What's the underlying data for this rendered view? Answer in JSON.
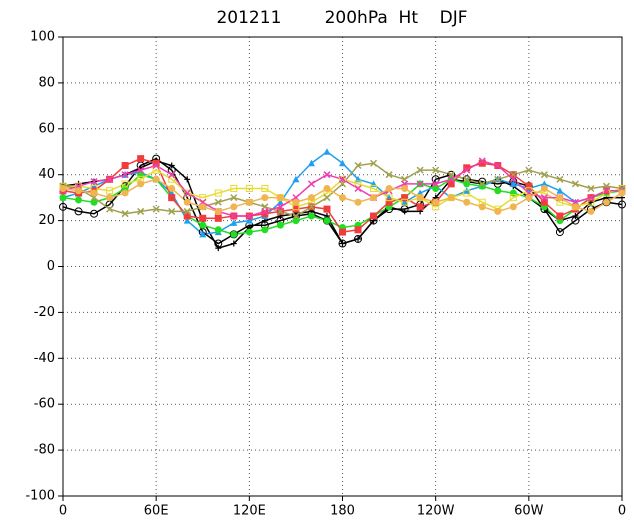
{
  "chart_data": {
    "type": "line",
    "title": "201211        200hPa  Ht    DJF",
    "x": [
      0,
      10,
      20,
      30,
      40,
      50,
      60,
      70,
      80,
      90,
      100,
      110,
      120,
      130,
      140,
      150,
      160,
      170,
      180,
      190,
      200,
      210,
      220,
      230,
      240,
      250,
      260,
      270,
      280,
      290,
      300,
      310,
      320,
      330,
      340,
      350,
      360
    ],
    "xlim": [
      0,
      360
    ],
    "xticks": [
      0,
      {
        "value": 60,
        "label": "60E"
      },
      {
        "value": 120,
        "label": "120E"
      },
      180,
      {
        "value": 240,
        "label": "120W"
      },
      {
        "value": 300,
        "label": "60W"
      },
      {
        "value": 360,
        "label": "0"
      }
    ],
    "ylim": [
      -100,
      100
    ],
    "yticks": [
      -100,
      -80,
      -60,
      -40,
      -20,
      0,
      20,
      40,
      60,
      80,
      100
    ],
    "grid": true,
    "series": [
      {
        "color": "#000000",
        "marker": "plus",
        "values": [
          35,
          36,
          37,
          38,
          40,
          43,
          46,
          44,
          38,
          20,
          8,
          10,
          17,
          20,
          22,
          23,
          24,
          22,
          10,
          12,
          20,
          26,
          24,
          24,
          30,
          38,
          37,
          36,
          38,
          35,
          30,
          25,
          20,
          22,
          28,
          30,
          30
        ]
      },
      {
        "color": "#000000",
        "marker": "circle",
        "values": [
          26,
          24,
          23,
          27,
          35,
          44,
          47,
          42,
          30,
          15,
          10,
          14,
          18,
          18,
          20,
          22,
          23,
          20,
          10,
          12,
          20,
          25,
          25,
          27,
          38,
          40,
          38,
          37,
          36,
          37,
          35,
          25,
          15,
          20,
          25,
          28,
          27
        ]
      },
      {
        "color": "#1ea0f0",
        "marker": "triangle",
        "values": [
          30,
          32,
          35,
          38,
          40,
          41,
          38,
          32,
          20,
          14,
          15,
          19,
          20,
          22,
          28,
          38,
          45,
          50,
          45,
          38,
          36,
          30,
          28,
          32,
          35,
          30,
          33,
          35,
          38,
          36,
          34,
          36,
          33,
          28,
          30,
          33,
          33
        ]
      },
      {
        "color": "#22dd22",
        "marker": "dot",
        "values": [
          30,
          29,
          28,
          30,
          34,
          40,
          38,
          30,
          22,
          18,
          16,
          14,
          15,
          16,
          18,
          20,
          22,
          20,
          17,
          18,
          22,
          26,
          30,
          36,
          34,
          38,
          36,
          35,
          33,
          32,
          30,
          26,
          20,
          25,
          30,
          32,
          33
        ]
      },
      {
        "color": "#f03c3c",
        "marker": "square",
        "values": [
          33,
          32,
          33,
          38,
          44,
          47,
          45,
          30,
          22,
          21,
          21,
          22,
          22,
          23,
          24,
          25,
          26,
          25,
          15,
          16,
          22,
          28,
          30,
          26,
          28,
          36,
          43,
          45,
          44,
          40,
          35,
          28,
          22,
          25,
          30,
          33,
          33
        ]
      },
      {
        "color": "#e6dc32",
        "marker": "opensquare",
        "values": [
          35,
          35,
          34,
          33,
          36,
          38,
          42,
          38,
          32,
          30,
          32,
          34,
          34,
          34,
          30,
          26,
          28,
          32,
          38,
          36,
          34,
          30,
          28,
          30,
          26,
          30,
          32,
          28,
          25,
          30,
          33,
          32,
          28,
          26,
          28,
          32,
          34
        ]
      },
      {
        "color": "#a0a050",
        "marker": "cross",
        "values": [
          35,
          34,
          30,
          25,
          23,
          24,
          25,
          24,
          24,
          26,
          28,
          30,
          28,
          26,
          24,
          22,
          26,
          30,
          36,
          44,
          45,
          40,
          38,
          42,
          42,
          40,
          38,
          36,
          38,
          40,
          42,
          40,
          38,
          36,
          34,
          35,
          34
        ]
      },
      {
        "color": "#f03cb4",
        "marker": "cross",
        "values": [
          33,
          35,
          37,
          38,
          40,
          42,
          44,
          40,
          32,
          28,
          24,
          22,
          22,
          24,
          26,
          30,
          36,
          40,
          38,
          34,
          30,
          33,
          36,
          36,
          36,
          38,
          42,
          46,
          44,
          38,
          32,
          30,
          30,
          28,
          30,
          33,
          33
        ]
      },
      {
        "color": "#f0b450",
        "marker": "dot",
        "values": [
          34,
          33,
          32,
          30,
          32,
          36,
          38,
          34,
          28,
          26,
          24,
          26,
          28,
          30,
          30,
          28,
          30,
          34,
          30,
          28,
          30,
          34,
          34,
          30,
          28,
          30,
          28,
          26,
          24,
          26,
          30,
          34,
          30,
          26,
          24,
          28,
          32
        ]
      }
    ]
  }
}
